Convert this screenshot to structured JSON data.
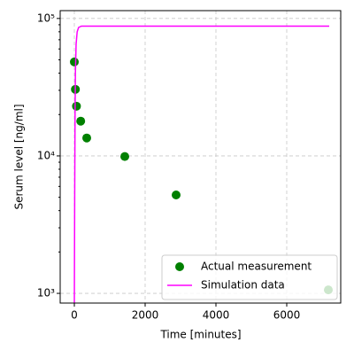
{
  "chart_data": {
    "type": "scatter-line",
    "xlabel": "Time [minutes]",
    "ylabel": "Serum level [ng/ml]",
    "xlim": [
      -400,
      7525
    ],
    "ylim": [
      850,
      114000
    ],
    "ylog": true,
    "grid": true,
    "xticks": [
      0,
      2000,
      4000,
      6000
    ],
    "yticks": [
      {
        "value": 1000,
        "label": "10³"
      },
      {
        "value": 10000,
        "label": "10⁴"
      },
      {
        "value": 100000,
        "label": "10⁵"
      }
    ],
    "yminorticks": [
      2000,
      3000,
      4000,
      5000,
      6000,
      7000,
      8000,
      9000,
      20000,
      30000,
      40000,
      50000,
      60000,
      70000,
      80000,
      90000
    ],
    "legend": "lower right",
    "series": [
      {
        "name": "Actual measurement",
        "kind": "scatter",
        "color": "#008000",
        "x": [
          0,
          30,
          60,
          180,
          350,
          1425,
          2875,
          7175
        ],
        "values": [
          48300,
          30500,
          23000,
          17900,
          13500,
          9900,
          5200,
          1060
        ]
      },
      {
        "name": "Simulation data",
        "kind": "line",
        "color": "#ff00ff",
        "x": [
          0,
          10,
          20,
          30,
          50,
          80,
          120,
          200,
          7200
        ],
        "values": [
          850,
          5000,
          20000,
          40000,
          65000,
          80000,
          86000,
          88000,
          88000
        ]
      }
    ]
  }
}
